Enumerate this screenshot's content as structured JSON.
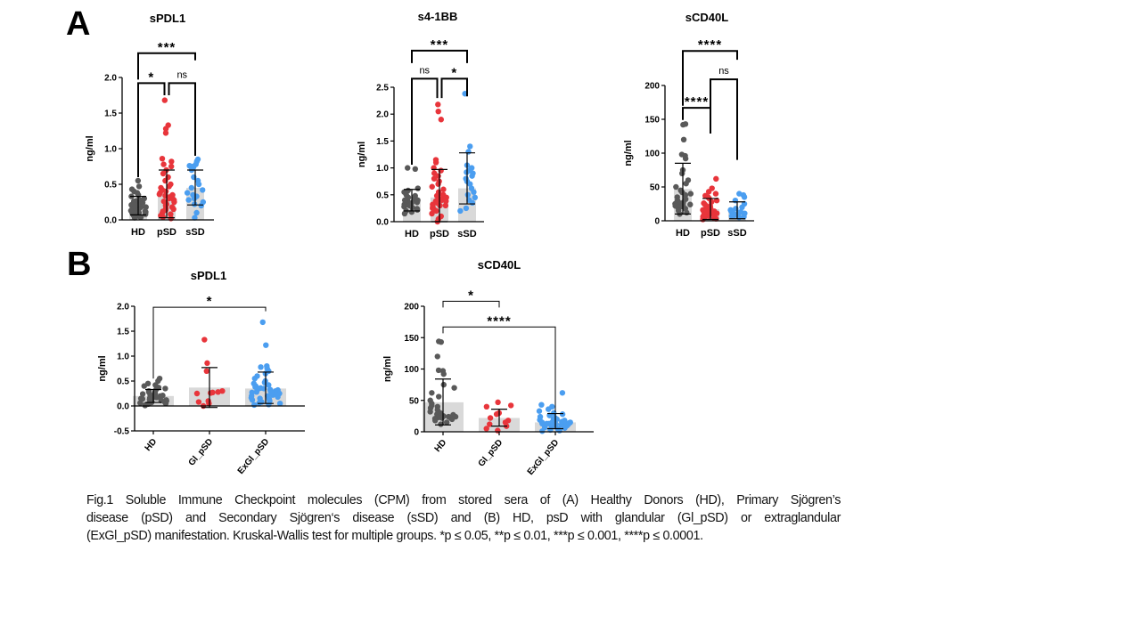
{
  "panels": {
    "a": "A",
    "b": "B"
  },
  "colors": {
    "HD": "#595959",
    "pSD": "#e8353b",
    "sSD": "#4b9ef0",
    "bar": "#d9d9d9",
    "axis": "#000000"
  },
  "chart_data": [
    {
      "id": "A1",
      "type": "bar",
      "title": "sPDL1",
      "ylabel": "ng/ml",
      "xlabel": "",
      "ylim": [
        0,
        2.0
      ],
      "yticks": [
        0,
        0.5,
        1.0,
        1.5,
        2.0
      ],
      "tick_decimals": 1,
      "zero_line": false,
      "categories": [
        "HD",
        "pSD",
        "sSD"
      ],
      "color_keys": [
        "HD",
        "pSD",
        "sSD"
      ],
      "means": [
        0.2,
        0.37,
        0.45
      ],
      "sd_low": [
        0.07,
        0.03,
        0.21
      ],
      "sd_high": [
        0.33,
        0.7,
        0.7
      ],
      "points": [
        [
          0.55,
          0.47,
          0.43,
          0.4,
          0.38,
          0.35,
          0.33,
          0.3,
          0.28,
          0.27,
          0.25,
          0.24,
          0.22,
          0.21,
          0.2,
          0.19,
          0.18,
          0.17,
          0.16,
          0.15,
          0.14,
          0.13,
          0.12,
          0.11,
          0.1,
          0.09,
          0.08,
          0.07,
          0.06,
          0.05,
          0.04,
          0.03,
          0.22,
          0.18,
          0.14,
          0.26,
          0.1,
          0.2
        ],
        [
          1.68,
          1.33,
          1.28,
          1.22,
          0.86,
          0.82,
          0.78,
          0.75,
          0.7,
          0.65,
          0.6,
          0.55,
          0.5,
          0.47,
          0.45,
          0.42,
          0.4,
          0.38,
          0.36,
          0.34,
          0.32,
          0.3,
          0.28,
          0.26,
          0.24,
          0.22,
          0.2,
          0.18,
          0.16,
          0.14,
          0.12,
          0.1,
          0.08,
          0.06,
          0.04,
          0.02,
          0.3,
          0.25,
          0.15,
          0.35
        ],
        [
          0.85,
          0.82,
          0.78,
          0.76,
          0.75,
          0.74,
          0.7,
          0.6,
          0.55,
          0.5,
          0.45,
          0.42,
          0.38,
          0.35,
          0.33,
          0.3,
          0.28,
          0.25,
          0.22,
          0.2,
          0.1,
          0.03
        ]
      ],
      "brackets": [
        {
          "from": 0,
          "to": 1,
          "level": 1.92,
          "legs": [
            0.6,
            1.75
          ],
          "label": "*"
        },
        {
          "from": 1,
          "to": 2,
          "level": 1.92,
          "legs": [
            1.75,
            0.9
          ],
          "label": "ns"
        },
        {
          "from": 0,
          "to": 2,
          "level": 2.34,
          "legs": [
            1.97,
            2.24
          ],
          "label": "***"
        }
      ]
    },
    {
      "id": "A2",
      "type": "bar",
      "title": "s4-1BB",
      "ylabel": "ng/ml",
      "xlabel": "",
      "ylim": [
        0,
        2.5
      ],
      "yticks": [
        0,
        0.5,
        1.0,
        1.5,
        2.0,
        2.5
      ],
      "tick_decimals": 1,
      "zero_line": false,
      "categories": [
        "HD",
        "pSD",
        "sSD"
      ],
      "color_keys": [
        "HD",
        "pSD",
        "sSD"
      ],
      "means": [
        0.38,
        0.45,
        0.62
      ],
      "sd_low": [
        0.2,
        0.0,
        0.33
      ],
      "sd_high": [
        0.6,
        0.97,
        1.28
      ],
      "points": [
        [
          1.0,
          0.98,
          0.62,
          0.58,
          0.55,
          0.5,
          0.48,
          0.45,
          0.42,
          0.4,
          0.38,
          0.36,
          0.34,
          0.32,
          0.3,
          0.28,
          0.26,
          0.24,
          0.22,
          0.2,
          0.18,
          0.15,
          0.45,
          0.35,
          0.4,
          0.3
        ],
        [
          2.18,
          2.05,
          1.9,
          1.15,
          1.1,
          1.0,
          0.95,
          0.9,
          0.85,
          0.8,
          0.75,
          0.7,
          0.65,
          0.6,
          0.55,
          0.5,
          0.48,
          0.45,
          0.42,
          0.4,
          0.38,
          0.35,
          0.32,
          0.3,
          0.28,
          0.25,
          0.22,
          0.2,
          0.15,
          0.1,
          0.05,
          0.0,
          0.42,
          0.38,
          0.3,
          0.5
        ],
        [
          2.38,
          1.4,
          1.3,
          1.05,
          1.0,
          0.95,
          0.92,
          0.9,
          0.85,
          0.8,
          0.75,
          0.7,
          0.62,
          0.55,
          0.5,
          0.45,
          0.4,
          0.35,
          0.25,
          0.2
        ]
      ],
      "brackets": [
        {
          "from": 0,
          "to": 1,
          "level": 2.66,
          "legs": [
            1.06,
            2.3
          ],
          "label": "ns"
        },
        {
          "from": 1,
          "to": 2,
          "level": 2.66,
          "legs": [
            2.3,
            2.33
          ],
          "label": "*"
        },
        {
          "from": 0,
          "to": 2,
          "level": 3.18,
          "legs": [
            2.95,
            2.95
          ],
          "label": "***"
        }
      ]
    },
    {
      "id": "A3",
      "type": "bar",
      "title": "sCD40L",
      "ylabel": "ng/ml",
      "xlabel": "",
      "ylim": [
        0,
        200
      ],
      "yticks": [
        0,
        50,
        100,
        150,
        200
      ],
      "tick_decimals": 0,
      "zero_line": false,
      "categories": [
        "HD",
        "pSD",
        "sSD"
      ],
      "color_keys": [
        "HD",
        "pSD",
        "sSD"
      ],
      "means": [
        47,
        17,
        13
      ],
      "sd_low": [
        10,
        2,
        3
      ],
      "sd_high": [
        85,
        33,
        28
      ],
      "points": [
        [
          143,
          142,
          120,
          98,
          96,
          92,
          75,
          70,
          60,
          55,
          50,
          45,
          42,
          40,
          38,
          35,
          32,
          30,
          28,
          27,
          26,
          25,
          24,
          23,
          22,
          21,
          20,
          18,
          15,
          12,
          10
        ],
        [
          62,
          48,
          43,
          40,
          37,
          35,
          33,
          30,
          28,
          26,
          24,
          22,
          20,
          19,
          18,
          17,
          16,
          15,
          14,
          13,
          12,
          11,
          10,
          9,
          8,
          7,
          6,
          5,
          4,
          3,
          2,
          15,
          12,
          18,
          10,
          8,
          20,
          14
        ],
        [
          40,
          38,
          35,
          30,
          25,
          20,
          18,
          16,
          15,
          14,
          13,
          12,
          11,
          10,
          9,
          8,
          7,
          6,
          5
        ]
      ],
      "brackets": [
        {
          "from": 0,
          "to": 1,
          "level": 167,
          "legs": [
            149,
            129
          ],
          "label": "****"
        },
        {
          "from": 1,
          "to": 2,
          "level": 209,
          "legs": [
            167,
            90
          ],
          "label": "ns"
        },
        {
          "from": 0,
          "to": 2,
          "level": 251,
          "legs": [
            170,
            238
          ],
          "label": "****"
        }
      ]
    },
    {
      "id": "B1",
      "type": "bar",
      "title": "sPDL1",
      "ylabel": "ng/ml",
      "xlabel": "",
      "ylim": [
        -0.5,
        2.0
      ],
      "yticks": [
        -0.5,
        0,
        0.5,
        1.0,
        1.5,
        2.0
      ],
      "tick_decimals": 1,
      "zero_line": true,
      "categories": [
        "HD",
        "Gl_pSD",
        "ExGl_pSD"
      ],
      "color_keys": [
        "HD",
        "pSD",
        "sSD"
      ],
      "means": [
        0.2,
        0.37,
        0.35
      ],
      "sd_low": [
        0.07,
        -0.03,
        0.05
      ],
      "sd_high": [
        0.33,
        0.77,
        0.68
      ],
      "points": [
        [
          0.55,
          0.5,
          0.45,
          0.42,
          0.4,
          0.37,
          0.35,
          0.33,
          0.3,
          0.28,
          0.27,
          0.25,
          0.24,
          0.22,
          0.21,
          0.2,
          0.19,
          0.18,
          0.17,
          0.16,
          0.15,
          0.14,
          0.13,
          0.12,
          0.11,
          0.1,
          0.09,
          0.08,
          0.07,
          0.06,
          0.05,
          0.04,
          0.02,
          0.01
        ],
        [
          1.33,
          0.86,
          0.7,
          0.3,
          0.28,
          0.27,
          0.26,
          0.25,
          0.1,
          0.08,
          0.05,
          0.0
        ],
        [
          1.68,
          1.22,
          0.8,
          0.78,
          0.75,
          0.7,
          0.65,
          0.6,
          0.55,
          0.5,
          0.47,
          0.45,
          0.42,
          0.4,
          0.38,
          0.36,
          0.35,
          0.33,
          0.32,
          0.3,
          0.28,
          0.27,
          0.26,
          0.25,
          0.24,
          0.22,
          0.2,
          0.18,
          0.16,
          0.15,
          0.14,
          0.12,
          0.1,
          0.08,
          0.06,
          0.05,
          0.03,
          0.02,
          0.3,
          0.25,
          0.2,
          0.35
        ]
      ],
      "brackets": [
        {
          "from": 0,
          "to": 2,
          "level": 1.98,
          "legs": [
            0.55,
            1.9
          ],
          "label": "*"
        }
      ]
    },
    {
      "id": "B2",
      "type": "bar",
      "title": "sCD40L",
      "ylabel": "ng/ml",
      "xlabel": "",
      "ylim": [
        0,
        200
      ],
      "yticks": [
        0,
        50,
        100,
        150,
        200
      ],
      "tick_decimals": 0,
      "zero_line": false,
      "categories": [
        "HD",
        "Gl_pSD",
        "ExGl_pSD"
      ],
      "color_keys": [
        "HD",
        "pSD",
        "sSD"
      ],
      "means": [
        47,
        22,
        15
      ],
      "sd_low": [
        11,
        9,
        5
      ],
      "sd_high": [
        84,
        36,
        29
      ],
      "points": [
        [
          144,
          143,
          120,
          98,
          97,
          92,
          75,
          70,
          62,
          56,
          50,
          45,
          42,
          40,
          38,
          35,
          32,
          30,
          28,
          27,
          26,
          25,
          24,
          24,
          23,
          22,
          22,
          21,
          20,
          18,
          15,
          12
        ],
        [
          47,
          42,
          40,
          30,
          28,
          22,
          18,
          15,
          12,
          9,
          5,
          2
        ],
        [
          62,
          43,
          40,
          36,
          33,
          30,
          28,
          26,
          24,
          22,
          21,
          20,
          19,
          18,
          17,
          16,
          16,
          15,
          15,
          14,
          14,
          13,
          13,
          12,
          12,
          11,
          10,
          10,
          9,
          8,
          7,
          6,
          5,
          4,
          3,
          2,
          1,
          15,
          14,
          13,
          12
        ]
      ],
      "brackets": [
        {
          "from": 0,
          "to": 1,
          "level": 208,
          "legs": [
            198,
            198
          ],
          "label": "*"
        },
        {
          "from": 0,
          "to": 2,
          "level": 167,
          "legs": [
            157,
            31
          ],
          "label": "****"
        }
      ]
    }
  ],
  "caption": {
    "lines": [
      "Fig.1 Soluble Immune Checkpoint molecules (CPM) from stored sera of (A) Healthy Donors (HD), Primary Sjögren’s",
      "disease (pSD) and Secondary Sjögren‘s disease (sSD) and (B) HD, psD with glandular (Gl_pSD) or extraglandular",
      "(ExGl_pSD) manifestation. Kruskal-Wallis test for multiple groups. *p ≤ 0.05, **p ≤ 0.01, ***p ≤ 0.001, ****p ≤ 0.0001."
    ]
  }
}
